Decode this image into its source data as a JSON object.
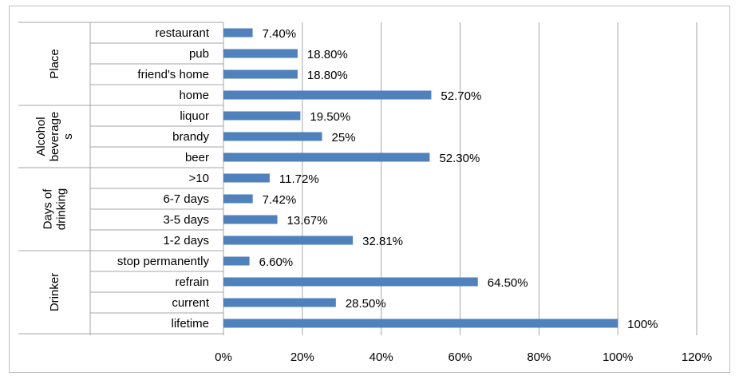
{
  "chart_data": {
    "type": "bar",
    "orientation": "horizontal",
    "bar_color": "#4F81BD",
    "grid": true,
    "xlim": [
      0,
      120
    ],
    "x_ticks": [
      "0%",
      "20%",
      "40%",
      "60%",
      "80%",
      "100%",
      "120%"
    ],
    "groups": [
      {
        "label_lines": [
          "Place"
        ],
        "categories": [
          "restaurant",
          "pub",
          "friend's home",
          "home"
        ],
        "values": [
          7.4,
          18.8,
          18.8,
          52.7
        ],
        "labels": [
          "7.40%",
          "18.80%",
          "18.80%",
          "52.70%"
        ]
      },
      {
        "label_lines": [
          "Alcohol",
          "beverage",
          "s"
        ],
        "categories": [
          "liquor",
          "brandy",
          "beer"
        ],
        "values": [
          19.5,
          25,
          52.3
        ],
        "labels": [
          "19.50%",
          "25%",
          "52.30%"
        ]
      },
      {
        "label_lines": [
          "Days of",
          "drinking"
        ],
        "categories": [
          ">10",
          "6-7 days",
          "3-5 days",
          "1-2 days"
        ],
        "values": [
          11.72,
          7.42,
          13.67,
          32.81
        ],
        "labels": [
          "11.72%",
          "7.42%",
          "13.67%",
          "32.81%"
        ]
      },
      {
        "label_lines": [
          "Drinker"
        ],
        "categories": [
          "stop permanently",
          "refrain",
          "current",
          "lifetime"
        ],
        "values": [
          6.6,
          64.5,
          28.5,
          100
        ],
        "labels": [
          "6.60%",
          "64.50%",
          "28.50%",
          "100%"
        ]
      }
    ]
  }
}
